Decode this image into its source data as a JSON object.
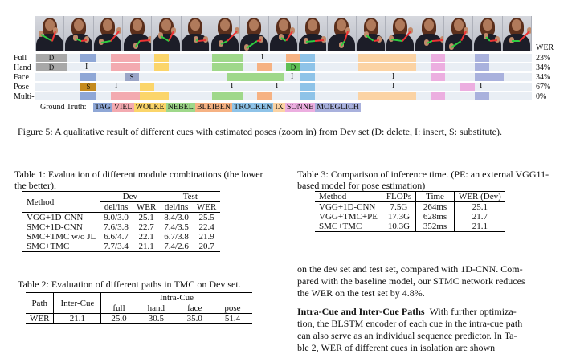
{
  "figure": {
    "wer_header": "WER",
    "rows": [
      {
        "label": "Full",
        "wer": "23%"
      },
      {
        "label": "Hand",
        "wer": "34%"
      },
      {
        "label": "Face",
        "wer": "34%"
      },
      {
        "label": "Pose",
        "wer": "67%"
      },
      {
        "label": "Multi-Cue",
        "wer": "0%"
      }
    ],
    "marks": {
      "delete": "D",
      "insert": "I",
      "substitute": "S"
    },
    "ground_truth_label": "Ground Truth:",
    "ground_truth": [
      {
        "gloss": "TAG",
        "color": "#8fa7d6"
      },
      {
        "gloss": "VIEL",
        "color": "#f3aab0"
      },
      {
        "gloss": "WOLKE",
        "color": "#fbd56a"
      },
      {
        "gloss": "NEBEL",
        "color": "#9fd88a"
      },
      {
        "gloss": "BLEIBEN",
        "color": "#f6b283"
      },
      {
        "gloss": "TROCKEN",
        "color": "#8ec3e8"
      },
      {
        "gloss": "IX",
        "color": "#fbd3a4"
      },
      {
        "gloss": "SONNE",
        "color": "#ecaee0"
      },
      {
        "gloss": "MOEGLICH",
        "color": "#a9b1dd"
      }
    ],
    "caption": "Figure 5: A qualitative result of different cues with estimated poses (zoom in) from Dev set (D: delete, I: insert, S: substitute)."
  },
  "table1": {
    "caption": "Table 1: Evaluation of different module combinations (the lower the better).",
    "head_method": "Method",
    "head_dev": "Dev",
    "head_test": "Test",
    "sub_delins": "del/ins",
    "sub_wer": "WER",
    "rows": [
      {
        "method": "VGG+1D-CNN",
        "dev_di": "9.0/3.0",
        "dev_wer": "25.1",
        "test_di": "8.4/3.0",
        "test_wer": "25.5"
      },
      {
        "method": "SMC+1D-CNN",
        "dev_di": "7.6/3.8",
        "dev_wer": "22.7",
        "test_di": "7.4/3.5",
        "test_wer": "22.4"
      },
      {
        "method": "SMC+TMC w/o JL",
        "dev_di": "6.6/4.7",
        "dev_wer": "22.1",
        "test_di": "6.7/3.8",
        "test_wer": "21.9"
      },
      {
        "method": "SMC+TMC",
        "dev_di": "7.7/3.4",
        "dev_wer": "21.1",
        "test_di": "7.4/2.6",
        "test_wer": "20.7"
      }
    ]
  },
  "table2": {
    "caption": "Table 2: Evaluation of different paths in TMC on Dev set.",
    "head_path": "Path",
    "head_inter": "Inter-Cue",
    "head_intra": "Intra-Cue",
    "sub": [
      "full",
      "hand",
      "face",
      "pose"
    ],
    "row_label": "WER",
    "inter": "21.1",
    "values": [
      "25.0",
      "30.5",
      "35.0",
      "51.4"
    ]
  },
  "table3": {
    "caption": "Table 3: Comparison of inference time. (PE: an external VGG11-based model for pose estimation)",
    "heads": [
      "Method",
      "FLOPs",
      "Time",
      "WER (Dev)"
    ],
    "rows": [
      [
        "VGG+1D-CNN",
        "7.5G",
        "264ms",
        "25.1"
      ],
      [
        "VGG+TMC+PE",
        "17.3G",
        "628ms",
        "21.7"
      ],
      [
        "SMC+TMC",
        "10.3G",
        "352ms",
        "21.1"
      ]
    ]
  },
  "body": {
    "p1_l1": "on the dev set and test set, compared with 1D-CNN. Com-",
    "p1_l2": "pared with the baseline model, our STMC network reduces",
    "p1_l3": "the WER on the test set by 4.8%.",
    "section_title": "Intra-Cue and Inter-Cue Paths",
    "p2_l1_rest": "With further optimiza-",
    "p2_l2": "tion, the BLSTM encoder of each cue in the intra-cue path",
    "p2_l3": "can also serve as an individual sequence predictor. In Ta-",
    "p2_l4": "ble 2, WER of different cues in isolation are shown"
  }
}
